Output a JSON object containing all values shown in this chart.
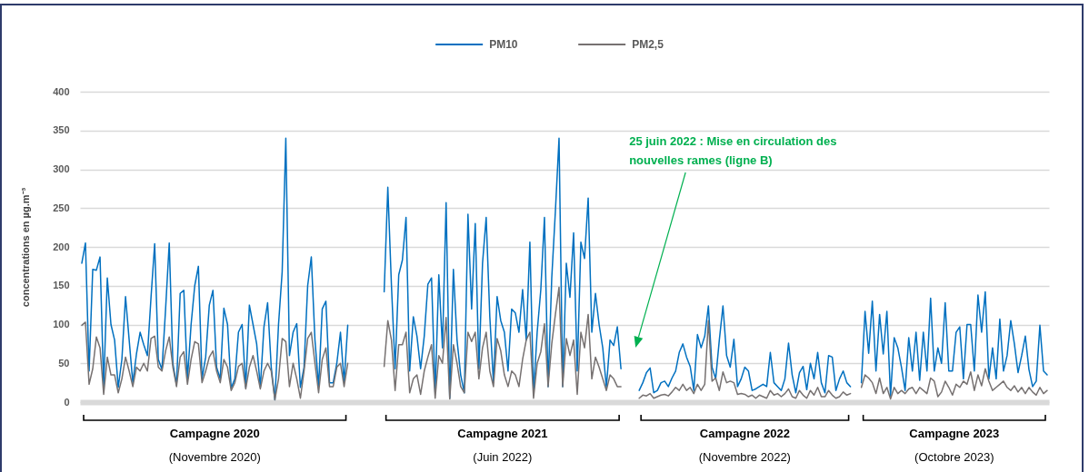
{
  "chart_data": {
    "type": "line",
    "ylabel": "concentrations en µg.m⁻³",
    "categories": [
      null,
      null,
      null,
      null,
      null,
      null,
      null,
      null,
      null,
      null,
      null,
      null,
      null,
      null,
      null,
      null,
      null,
      null,
      null,
      null,
      null,
      null,
      null,
      null,
      null,
      null,
      null,
      null,
      null,
      null,
      null,
      null,
      null,
      null,
      null,
      null,
      null,
      null,
      null,
      null,
      null,
      null,
      null,
      null,
      null,
      null,
      null,
      null,
      null,
      null,
      null,
      null,
      null,
      null,
      null,
      null,
      null,
      null,
      null,
      null,
      null,
      null,
      null,
      null,
      null,
      null,
      null,
      null,
      null,
      null,
      null,
      null,
      null,
      null,
      null,
      null,
      null,
      null,
      null,
      null,
      null,
      null,
      null,
      null,
      null,
      null,
      null,
      null,
      null,
      null,
      null,
      null,
      null,
      null,
      null,
      null,
      null,
      null,
      null,
      null,
      null,
      null,
      null,
      null,
      null,
      null,
      null,
      null,
      null,
      null,
      null,
      null,
      null,
      null,
      null,
      null,
      null,
      null,
      null,
      null,
      null,
      null,
      null,
      null,
      null,
      null,
      null,
      null,
      null,
      null,
      null,
      null,
      null,
      null,
      null,
      null,
      null,
      null,
      null,
      null,
      null,
      null,
      null,
      null,
      null,
      null,
      null,
      null,
      null,
      null,
      null,
      null,
      null,
      null,
      null,
      null,
      null,
      null,
      null,
      null,
      null,
      null,
      null,
      null,
      null,
      null,
      null,
      null,
      null,
      null,
      null,
      null,
      null,
      null,
      null,
      null,
      null,
      null,
      null,
      null,
      null,
      null,
      null,
      null,
      null,
      null,
      null,
      null,
      null,
      null,
      null,
      null,
      null,
      null,
      null,
      null,
      null,
      null,
      null,
      null,
      null,
      null,
      null,
      null,
      null,
      null,
      null,
      null,
      null,
      null,
      null,
      null,
      null,
      null,
      null,
      null,
      null,
      null,
      null,
      null,
      null,
      null,
      null,
      null,
      null,
      null,
      null,
      null,
      null,
      null,
      null,
      null,
      null,
      null,
      null,
      null,
      null,
      null,
      null,
      null,
      null,
      null,
      null,
      null,
      null,
      null,
      null,
      null,
      null,
      null,
      null,
      null,
      null,
      null,
      null,
      null,
      null,
      null,
      null,
      null,
      null,
      null,
      null,
      null,
      null,
      null
    ],
    "series": [
      {
        "name": "PM10",
        "color": "#0070c0",
        "values": [
          179,
          205,
          40,
          171,
          170,
          187,
          20,
          160,
          100,
          80,
          19,
          55,
          136,
          80,
          25,
          62,
          90,
          74,
          60,
          135,
          204,
          55,
          42,
          120,
          205,
          50,
          22,
          140,
          144,
          30,
          100,
          150,
          175,
          30,
          58,
          125,
          144,
          45,
          30,
          121,
          100,
          18,
          30,
          90,
          100,
          19,
          125,
          100,
          75,
          19,
          97,
          128,
          45,
          3,
          100,
          168,
          340,
          60,
          90,
          101,
          19,
          45,
          150,
          187,
          80,
          20,
          120,
          130,
          25,
          25,
          50,
          90,
          25,
          99,
          null,
          null,
          null,
          null,
          null,
          null,
          null,
          null,
          null,
          142,
          277,
          150,
          43,
          164,
          183,
          238,
          40,
          110,
          85,
          43,
          85,
          152,
          160,
          12,
          164,
          70,
          257,
          5,
          171,
          80,
          35,
          12,
          242,
          120,
          230,
          43,
          179,
          238,
          110,
          25,
          136,
          105,
          90,
          40,
          120,
          115,
          90,
          145,
          80,
          206,
          11,
          90,
          145,
          238,
          20,
          160,
          246,
          340,
          20,
          179,
          135,
          218,
          40,
          206,
          185,
          263,
          90,
          140,
          100,
          70,
          19,
          80,
          73,
          97,
          43,
          null,
          null,
          null,
          null,
          15,
          25,
          38,
          44,
          12,
          15,
          25,
          27,
          20,
          31,
          40,
          64,
          75,
          58,
          46,
          15,
          87,
          70,
          85,
          124,
          45,
          30,
          80,
          124,
          60,
          45,
          81,
          20,
          30,
          45,
          40,
          15,
          17,
          20,
          23,
          20,
          64,
          25,
          20,
          15,
          30,
          76,
          35,
          12,
          38,
          46,
          16,
          50,
          30,
          64,
          25,
          12,
          60,
          58,
          15,
          30,
          40,
          25,
          20,
          null,
          null,
          25,
          117,
          63,
          130,
          40,
          113,
          62,
          117,
          8,
          83,
          70,
          45,
          15,
          83,
          40,
          90,
          28,
          90,
          40,
          134,
          40,
          70,
          50,
          128,
          40,
          40,
          90,
          97,
          30,
          100,
          100,
          40,
          138,
          90,
          142,
          30,
          70,
          30,
          107,
          40,
          60,
          105,
          75,
          38,
          60,
          85,
          42,
          20,
          27,
          99,
          40,
          35
        ]
      },
      {
        "name": "PM2,5",
        "color": "#767171",
        "values": [
          99,
          103,
          23,
          43,
          84,
          70,
          10,
          58,
          35,
          35,
          12,
          30,
          58,
          40,
          20,
          45,
          40,
          50,
          40,
          82,
          85,
          45,
          40,
          66,
          84,
          45,
          20,
          58,
          65,
          23,
          55,
          78,
          75,
          25,
          40,
          58,
          66,
          40,
          25,
          55,
          45,
          15,
          25,
          46,
          50,
          17,
          45,
          60,
          40,
          17,
          40,
          50,
          40,
          3,
          30,
          82,
          78,
          20,
          50,
          30,
          5,
          40,
          82,
          90,
          50,
          12,
          55,
          70,
          20,
          20,
          45,
          50,
          20,
          50,
          null,
          null,
          null,
          null,
          null,
          null,
          null,
          null,
          null,
          46,
          105,
          80,
          15,
          74,
          74,
          90,
          12,
          30,
          35,
          10,
          40,
          58,
          74,
          5,
          60,
          50,
          109,
          4,
          74,
          50,
          20,
          12,
          90,
          78,
          90,
          30,
          70,
          90,
          40,
          20,
          82,
          66,
          35,
          20,
          40,
          35,
          20,
          55,
          80,
          90,
          5,
          50,
          65,
          101,
          20,
          75,
          113,
          148,
          20,
          82,
          60,
          80,
          10,
          90,
          70,
          113,
          30,
          58,
          45,
          30,
          15,
          35,
          30,
          20,
          20,
          null,
          null,
          null,
          null,
          5,
          9,
          8,
          11,
          5,
          7,
          9,
          10,
          8,
          13,
          19,
          15,
          23,
          15,
          19,
          11,
          23,
          15,
          23,
          105,
          27,
          31,
          15,
          39,
          25,
          27,
          25,
          10,
          11,
          10,
          7,
          9,
          5,
          9,
          7,
          5,
          15,
          9,
          11,
          7,
          11,
          17,
          7,
          5,
          15,
          9,
          5,
          15,
          9,
          19,
          7,
          7,
          15,
          9,
          5,
          7,
          13,
          9,
          11,
          null,
          null,
          19,
          35,
          31,
          25,
          11,
          31,
          11,
          19,
          4,
          19,
          11,
          15,
          11,
          17,
          19,
          11,
          19,
          15,
          11,
          31,
          27,
          7,
          13,
          27,
          19,
          9,
          23,
          19,
          27,
          23,
          39,
          15,
          35,
          21,
          43,
          27,
          15,
          19,
          23,
          27,
          19,
          15,
          21,
          13,
          19,
          11,
          19,
          13,
          9,
          19,
          11,
          15
        ]
      }
    ],
    "ylim": [
      0,
      400
    ],
    "yticks": [
      0,
      50,
      100,
      150,
      200,
      250,
      300,
      350,
      400
    ],
    "grid": "y",
    "legend": "top",
    "annotations": [
      "25 juin 2022 : Mise en circulation des nouvelles rames (ligne B)",
      "Campagne 2020",
      "(Novembre 2020)",
      "Campagne 2021",
      "(Juin 2022)",
      "Campagne 2022",
      "(Novembre 2022)",
      "Campagne 2023",
      "(Octobre 2023)"
    ]
  }
}
